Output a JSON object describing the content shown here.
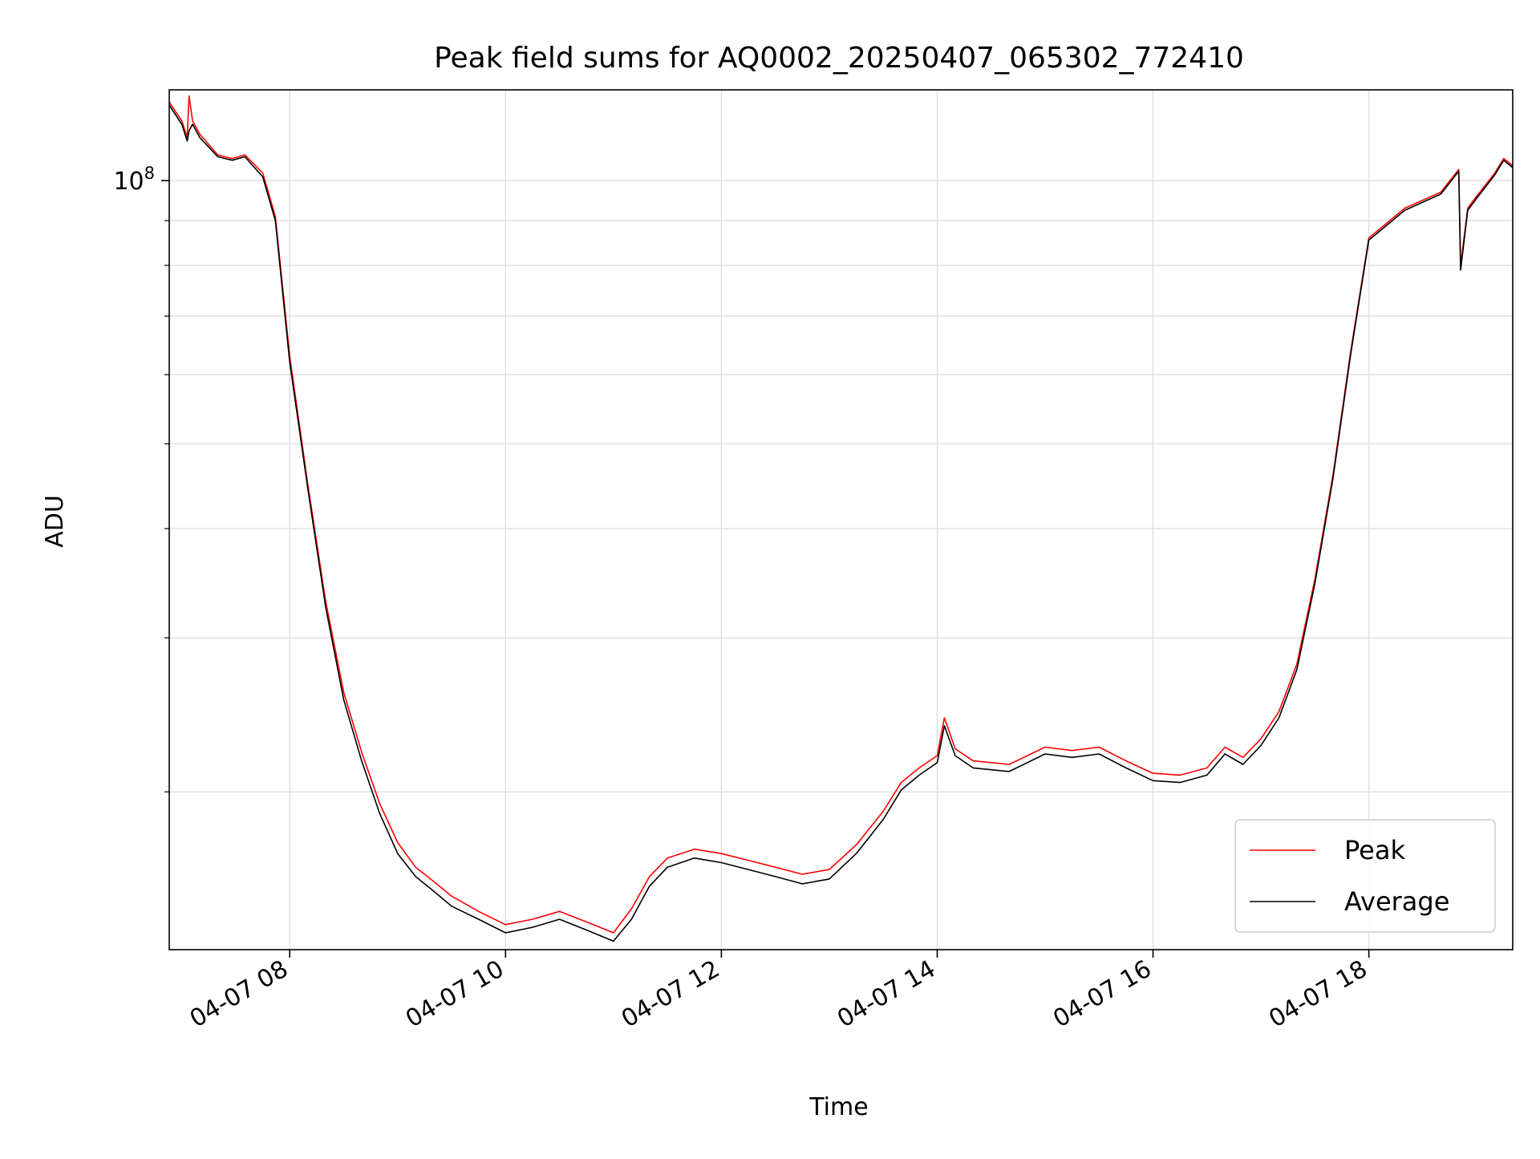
{
  "chart_data": {
    "type": "line",
    "title": "Peak field sums for AQ0002_20250407_065302_772410",
    "xlabel": "Time",
    "ylabel": "ADU",
    "y_scale": "log",
    "x_scale": "time",
    "xlim": [
      "2025-04-07 06:53",
      "2025-04-07 19:20"
    ],
    "ylim": [
      13200000,
      127000000
    ],
    "x_ticks": [
      {
        "value": "2025-04-07 08:00",
        "label": "04-07 08"
      },
      {
        "value": "2025-04-07 10:00",
        "label": "04-07 10"
      },
      {
        "value": "2025-04-07 12:00",
        "label": "04-07 12"
      },
      {
        "value": "2025-04-07 14:00",
        "label": "04-07 14"
      },
      {
        "value": "2025-04-07 16:00",
        "label": "04-07 16"
      },
      {
        "value": "2025-04-07 18:00",
        "label": "04-07 18"
      }
    ],
    "y_ticks": [
      {
        "value": 100000000,
        "base": "10",
        "exp": "8"
      }
    ],
    "y_minor_ticks": [
      20000000,
      30000000,
      40000000,
      50000000,
      60000000,
      70000000,
      80000000,
      90000000
    ],
    "grid": true,
    "legend_position": "lower-right",
    "series": [
      {
        "name": "Peak",
        "color": "#ff0000",
        "x": [
          "2025-04-07 06:53",
          "2025-04-07 07:00",
          "2025-04-07 07:03",
          "2025-04-07 07:04",
          "2025-04-07 07:06",
          "2025-04-07 07:10",
          "2025-04-07 07:20",
          "2025-04-07 07:28",
          "2025-04-07 07:35",
          "2025-04-07 07:45",
          "2025-04-07 07:52",
          "2025-04-07 08:00",
          "2025-04-07 08:10",
          "2025-04-07 08:20",
          "2025-04-07 08:30",
          "2025-04-07 08:40",
          "2025-04-07 08:50",
          "2025-04-07 09:00",
          "2025-04-07 09:10",
          "2025-04-07 09:20",
          "2025-04-07 09:30",
          "2025-04-07 09:45",
          "2025-04-07 10:00",
          "2025-04-07 10:15",
          "2025-04-07 10:30",
          "2025-04-07 10:45",
          "2025-04-07 11:00",
          "2025-04-07 11:10",
          "2025-04-07 11:20",
          "2025-04-07 11:30",
          "2025-04-07 11:45",
          "2025-04-07 12:00",
          "2025-04-07 12:15",
          "2025-04-07 12:30",
          "2025-04-07 12:45",
          "2025-04-07 13:00",
          "2025-04-07 13:15",
          "2025-04-07 13:30",
          "2025-04-07 13:40",
          "2025-04-07 13:50",
          "2025-04-07 14:00",
          "2025-04-07 14:04",
          "2025-04-07 14:10",
          "2025-04-07 14:20",
          "2025-04-07 14:40",
          "2025-04-07 15:00",
          "2025-04-07 15:15",
          "2025-04-07 15:30",
          "2025-04-07 15:45",
          "2025-04-07 16:00",
          "2025-04-07 16:15",
          "2025-04-07 16:30",
          "2025-04-07 16:40",
          "2025-04-07 16:50",
          "2025-04-07 17:00",
          "2025-04-07 17:10",
          "2025-04-07 17:20",
          "2025-04-07 17:30",
          "2025-04-07 17:40",
          "2025-04-07 17:50",
          "2025-04-07 18:00",
          "2025-04-07 18:20",
          "2025-04-07 18:40",
          "2025-04-07 18:50",
          "2025-04-07 18:51",
          "2025-04-07 18:55",
          "2025-04-07 19:00",
          "2025-04-07 19:10",
          "2025-04-07 19:15",
          "2025-04-07 19:20"
        ],
        "y": [
          123000000,
          117000000,
          112000000,
          125000000,
          117000000,
          113000000,
          107000000,
          106000000,
          107000000,
          102000000,
          91000000,
          63000000,
          45000000,
          33000000,
          26000000,
          22200000,
          19400000,
          17500000,
          16400000,
          15800000,
          15200000,
          14600000,
          14100000,
          14300000,
          14600000,
          14200000,
          13800000,
          14700000,
          16000000,
          16800000,
          17200000,
          17000000,
          16700000,
          16400000,
          16100000,
          16300000,
          17400000,
          19000000,
          20500000,
          21300000,
          22000000,
          24300000,
          22400000,
          21700000,
          21500000,
          22500000,
          22300000,
          22500000,
          21700000,
          21000000,
          20900000,
          21300000,
          22500000,
          21900000,
          23000000,
          24700000,
          28000000,
          35000000,
          46000000,
          64000000,
          86000000,
          93000000,
          97000000,
          103000000,
          80000000,
          93000000,
          96000000,
          102000000,
          106000000,
          104000000
        ]
      },
      {
        "name": "Average",
        "color": "#000000",
        "x": [
          "2025-04-07 06:53",
          "2025-04-07 07:00",
          "2025-04-07 07:03",
          "2025-04-07 07:04",
          "2025-04-07 07:06",
          "2025-04-07 07:10",
          "2025-04-07 07:20",
          "2025-04-07 07:28",
          "2025-04-07 07:35",
          "2025-04-07 07:45",
          "2025-04-07 07:52",
          "2025-04-07 08:00",
          "2025-04-07 08:10",
          "2025-04-07 08:20",
          "2025-04-07 08:30",
          "2025-04-07 08:40",
          "2025-04-07 08:50",
          "2025-04-07 09:00",
          "2025-04-07 09:10",
          "2025-04-07 09:20",
          "2025-04-07 09:30",
          "2025-04-07 09:45",
          "2025-04-07 10:00",
          "2025-04-07 10:15",
          "2025-04-07 10:30",
          "2025-04-07 10:45",
          "2025-04-07 11:00",
          "2025-04-07 11:10",
          "2025-04-07 11:20",
          "2025-04-07 11:30",
          "2025-04-07 11:45",
          "2025-04-07 12:00",
          "2025-04-07 12:15",
          "2025-04-07 12:30",
          "2025-04-07 12:45",
          "2025-04-07 13:00",
          "2025-04-07 13:15",
          "2025-04-07 13:30",
          "2025-04-07 13:40",
          "2025-04-07 13:50",
          "2025-04-07 14:00",
          "2025-04-07 14:04",
          "2025-04-07 14:10",
          "2025-04-07 14:20",
          "2025-04-07 14:40",
          "2025-04-07 15:00",
          "2025-04-07 15:15",
          "2025-04-07 15:30",
          "2025-04-07 15:45",
          "2025-04-07 16:00",
          "2025-04-07 16:15",
          "2025-04-07 16:30",
          "2025-04-07 16:40",
          "2025-04-07 16:50",
          "2025-04-07 17:00",
          "2025-04-07 17:10",
          "2025-04-07 17:20",
          "2025-04-07 17:30",
          "2025-04-07 17:40",
          "2025-04-07 17:50",
          "2025-04-07 18:00",
          "2025-04-07 18:20",
          "2025-04-07 18:40",
          "2025-04-07 18:50",
          "2025-04-07 18:51",
          "2025-04-07 18:55",
          "2025-04-07 19:00",
          "2025-04-07 19:10",
          "2025-04-07 19:15",
          "2025-04-07 19:20"
        ],
        "y": [
          122000000,
          116000000,
          111000000,
          114000000,
          116000000,
          112000000,
          106500000,
          105500000,
          106500000,
          101000000,
          90000000,
          62000000,
          44500000,
          32500000,
          25500000,
          21700000,
          18900000,
          17000000,
          16000000,
          15400000,
          14800000,
          14300000,
          13800000,
          14000000,
          14300000,
          13900000,
          13500000,
          14300000,
          15600000,
          16400000,
          16800000,
          16600000,
          16300000,
          16000000,
          15700000,
          15900000,
          17000000,
          18600000,
          20100000,
          20900000,
          21600000,
          23800000,
          22000000,
          21300000,
          21100000,
          22100000,
          21900000,
          22100000,
          21300000,
          20600000,
          20500000,
          20900000,
          22100000,
          21500000,
          22600000,
          24300000,
          27600000,
          34600000,
          45600000,
          63500000,
          85500000,
          92500000,
          96500000,
          102500000,
          79000000,
          92500000,
          95500000,
          101500000,
          105500000,
          103500000
        ]
      }
    ]
  }
}
